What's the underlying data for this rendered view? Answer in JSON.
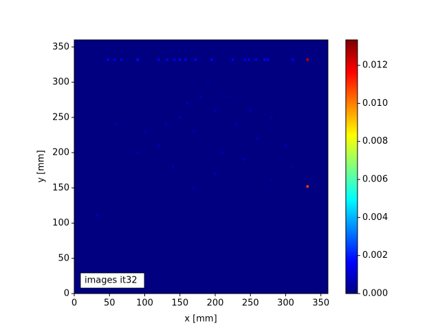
{
  "chart_data": {
    "type": "heatmap",
    "x_label": "x [mm]",
    "y_label": "y [mm]",
    "annotation": "images it32",
    "colormap": "jet",
    "xlim": [
      0,
      360
    ],
    "ylim": [
      0,
      360
    ],
    "xticks": [
      0,
      50,
      100,
      150,
      200,
      250,
      300,
      350
    ],
    "yticks": [
      0,
      50,
      100,
      150,
      200,
      250,
      300,
      350
    ],
    "clim": [
      0,
      0.01334
    ],
    "cticks": [
      {
        "value": 0,
        "label": "0.000"
      },
      {
        "value": 0.002,
        "label": "0.002"
      },
      {
        "value": 0.004,
        "label": "0.004"
      },
      {
        "value": 0.006,
        "label": "0.006"
      },
      {
        "value": 0.008,
        "label": "0.008"
      },
      {
        "value": 0.01,
        "label": "0.010"
      },
      {
        "value": 0.012,
        "label": "0.012"
      }
    ],
    "x": [
      48,
      57,
      67,
      90,
      120,
      132,
      142,
      150,
      158,
      172,
      195,
      225,
      242,
      248,
      258,
      270,
      275,
      310,
      331,
      331,
      150,
      170,
      200,
      230,
      120,
      260,
      180,
      210,
      100,
      280,
      140,
      240,
      300,
      190,
      160,
      220,
      130,
      250,
      90,
      310,
      60,
      200,
      170,
      280,
      33
    ],
    "y": [
      332,
      332,
      332,
      332,
      332,
      332,
      332,
      332,
      332,
      332,
      332,
      332,
      332,
      332,
      332,
      332,
      332,
      332,
      332,
      152,
      250,
      230,
      260,
      240,
      210,
      220,
      280,
      200,
      230,
      250,
      180,
      190,
      210,
      300,
      270,
      280,
      240,
      260,
      200,
      180,
      240,
      170,
      150,
      160,
      112
    ],
    "values": [
      0.0016,
      0.0014,
      0.0014,
      0.0018,
      0.0015,
      0.0016,
      0.0014,
      0.0017,
      0.0015,
      0.0017,
      0.0016,
      0.0015,
      0.0014,
      0.0016,
      0.0015,
      0.0016,
      0.0015,
      0.0015,
      0.0125,
      0.011,
      0.0007,
      0.0006,
      0.0008,
      0.0007,
      0.0006,
      0.0007,
      0.0006,
      0.0008,
      0.0005,
      0.0006,
      0.0005,
      0.0007,
      0.0006,
      0.0005,
      0.0007,
      0.0006,
      0.0006,
      0.0007,
      0.0005,
      0.0005,
      0.0005,
      0.0006,
      0.0005,
      0.0005,
      0.0006
    ]
  }
}
